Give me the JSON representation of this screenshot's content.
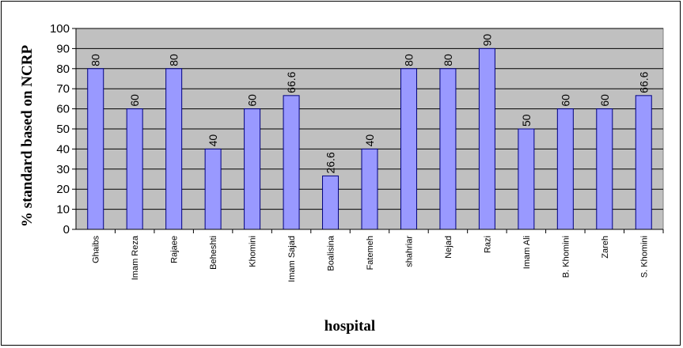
{
  "chart_data": {
    "type": "bar",
    "categories": [
      "Ghaibs",
      "Imam Reza",
      "Rajaee",
      "Beheshti",
      "Khomini",
      "Imam Sajad",
      "Boalisina",
      "Fatemeh",
      "shahriar",
      "Nejad",
      "Razi",
      "Imam Ali",
      "B. Khomini",
      "Zareh",
      "S. Khomini"
    ],
    "values": [
      80,
      60,
      80,
      40,
      60,
      66.6,
      26.6,
      40,
      80,
      80,
      90,
      50,
      60,
      60,
      66.6
    ],
    "data_labels": [
      "80",
      "60",
      "80",
      "40",
      "60",
      "66.6",
      "26.6",
      "40",
      "80",
      "80",
      "90",
      "50",
      "60",
      "60",
      "66.6"
    ],
    "title": "",
    "xlabel": "hospital",
    "ylabel": "% standard based on NCRP",
    "ylim": [
      0,
      100
    ],
    "yticks": [
      0,
      10,
      20,
      30,
      40,
      50,
      60,
      70,
      80,
      90,
      100
    ],
    "grid": true,
    "legend": "none",
    "colors": {
      "bar_fill": "#9999ff",
      "bar_stroke": "#000080",
      "plot_background": "#c0c0c0",
      "gridline": "#000000"
    }
  }
}
